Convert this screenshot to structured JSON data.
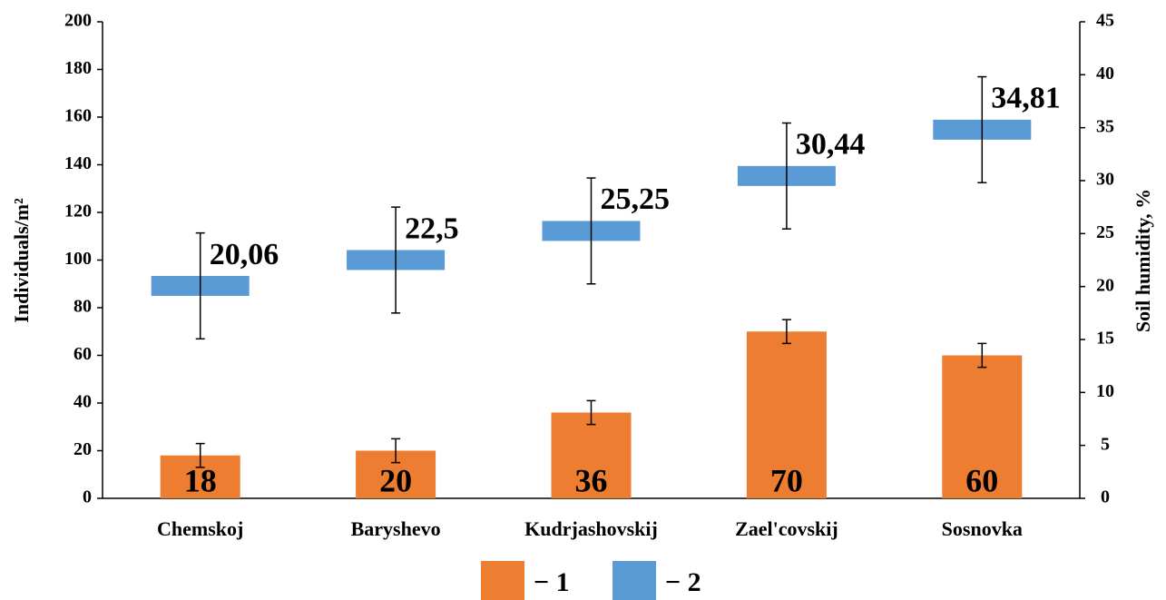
{
  "chart_data": {
    "type": "bar_marker",
    "categories": [
      "Chemskoj",
      "Baryshevo",
      "Kudrjashovskij",
      "Zael'covskij",
      "Sosnovka"
    ],
    "series": [
      {
        "name": "− 1",
        "color": "#ed7d31",
        "values": [
          18,
          20,
          36,
          70,
          60
        ],
        "errors": [
          5,
          5,
          5,
          5,
          5
        ]
      },
      {
        "name": "− 2",
        "color": "#5b9bd5",
        "axis": "y2",
        "values": [
          20.06,
          22.5,
          25.25,
          30.44,
          34.81
        ],
        "value_labels": [
          "20,06",
          "22,5",
          "25,25",
          "30,44",
          "34,81"
        ],
        "errors": [
          5,
          5,
          5,
          5,
          5
        ]
      }
    ],
    "ylabel": "Individuals/m²",
    "y2label": "Soil humidity, %",
    "ylim": [
      0,
      200
    ],
    "yticks": [
      0,
      20,
      40,
      60,
      80,
      100,
      120,
      140,
      160,
      180,
      200
    ],
    "y2lim": [
      0,
      45
    ],
    "y2ticks": [
      0,
      5,
      10,
      15,
      20,
      25,
      30,
      35,
      40,
      45
    ],
    "legend": "bottom"
  }
}
